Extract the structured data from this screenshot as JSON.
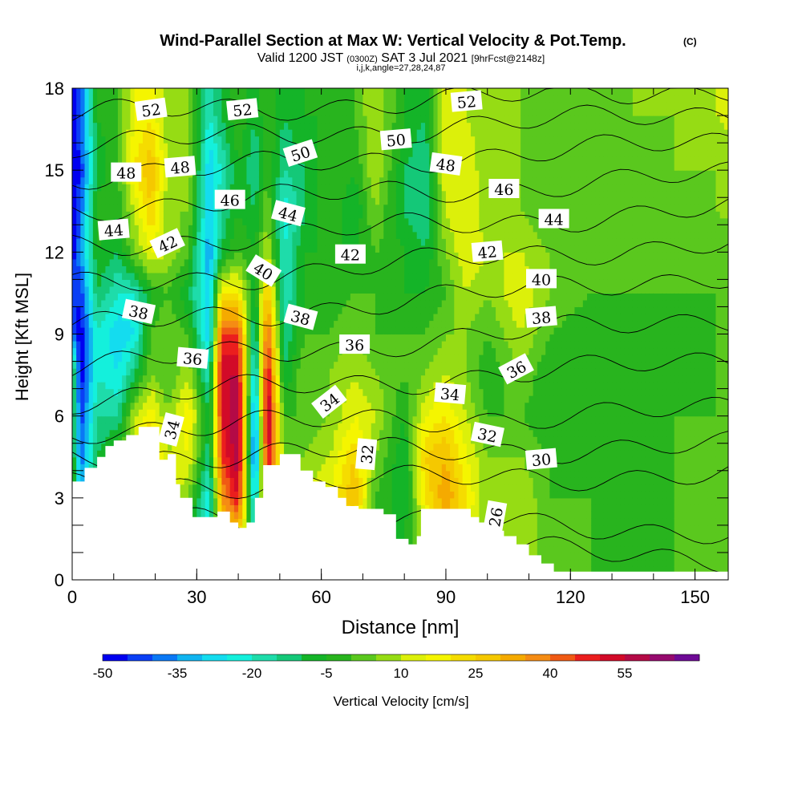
{
  "chart_data": {
    "type": "heatmap",
    "title": "Wind-Parallel Section at Max W: Vertical Velocity & Pot.Temp.",
    "title_mark": "(C)",
    "subtitle": {
      "valid": "Valid 1200 JST",
      "utc": "(0300Z)",
      "date": "SAT 3 Jul 2021",
      "fcst": "[9hrFcst@2148z]"
    },
    "subtitle2": "i,j,k,angle=27,28,24,87",
    "xlabel": "Distance [nm]",
    "ylabel": "Height [Kft MSL]",
    "xlim": [
      0,
      158
    ],
    "ylim": [
      0,
      18
    ],
    "x_ticks": [
      "0",
      "30",
      "60",
      "90",
      "120",
      "150"
    ],
    "x_tick_values": [
      0,
      30,
      60,
      90,
      120,
      150
    ],
    "y_ticks": [
      "0",
      "3",
      "6",
      "9",
      "12",
      "15",
      "18"
    ],
    "y_tick_values": [
      0,
      3,
      6,
      9,
      12,
      15,
      18
    ],
    "colorbar": {
      "label": "Vertical Velocity [cm/s]",
      "tick_labels": [
        "-50",
        "-35",
        "-20",
        "-5",
        "10",
        "25",
        "40",
        "55"
      ],
      "tick_values": [
        -50,
        -35,
        -20,
        -5,
        10,
        25,
        40,
        55
      ],
      "levels": [
        -50,
        -45,
        -40,
        -35,
        -30,
        -25,
        -20,
        -15,
        -10,
        -5,
        0,
        5,
        10,
        15,
        20,
        25,
        30,
        35,
        40,
        45,
        50,
        55,
        60,
        65
      ],
      "colors": [
        "#0000f0",
        "#0a3ff5",
        "#0a78f5",
        "#10b4f0",
        "#14dcef",
        "#14f0dc",
        "#1edcaa",
        "#14c878",
        "#14b428",
        "#28b41e",
        "#5ac81e",
        "#96dc14",
        "#dcf00a",
        "#f5f500",
        "#f5dc00",
        "#f5c800",
        "#f5aa00",
        "#f58c14",
        "#f05a14",
        "#eb1e1e",
        "#d20a28",
        "#b40a46",
        "#960a6e",
        "#6e0a96"
      ]
    },
    "vertical_velocity_cells": {
      "x_start": 0,
      "x_step": 1,
      "y_start": 0,
      "y_step": 0.25,
      "columns": [
        {
          "x": 0,
          "w": [
            0,
            0,
            0,
            0,
            0,
            -40,
            -40,
            -50,
            -50,
            -50,
            -50
          ]
        },
        {
          "x": 2,
          "w": [
            -10,
            -30,
            -40,
            -45,
            -50,
            -50,
            -45,
            -35,
            -40,
            -45,
            -40
          ]
        },
        {
          "x": 6,
          "w": [
            0,
            -5,
            -10,
            -15,
            -20,
            -20,
            -10,
            -5,
            0,
            -10,
            -5
          ]
        },
        {
          "x": 11,
          "w": [
            0,
            5,
            0,
            -15,
            -25,
            -30,
            -20,
            -10,
            -5,
            0,
            0
          ]
        },
        {
          "x": 15,
          "w": [
            5,
            10,
            15,
            10,
            -10,
            -25,
            -20,
            5,
            10,
            20,
            15
          ]
        },
        {
          "x": 19,
          "w": [
            10,
            20,
            25,
            20,
            5,
            0,
            -5,
            15,
            25,
            30,
            20
          ]
        },
        {
          "x": 23,
          "w": [
            0,
            15,
            10,
            5,
            0,
            5,
            0,
            10,
            5,
            10,
            5
          ]
        },
        {
          "x": 28,
          "w": [
            -5,
            5,
            15,
            20,
            10,
            0,
            -10,
            0,
            5,
            10,
            5
          ]
        },
        {
          "x": 33,
          "w": [
            -20,
            -25,
            -15,
            -10,
            -20,
            -30,
            -30,
            -35,
            -30,
            -30,
            -20
          ]
        },
        {
          "x": 36,
          "w": [
            15,
            35,
            45,
            50,
            55,
            45,
            20,
            -10,
            -15,
            -20,
            -10
          ]
        },
        {
          "x": 40,
          "w": [
            25,
            50,
            60,
            60,
            55,
            45,
            20,
            0,
            -5,
            -5,
            0
          ]
        },
        {
          "x": 44,
          "w": [
            -20,
            -30,
            -45,
            -40,
            -30,
            -20,
            -10,
            -5,
            -10,
            -15,
            -10
          ]
        },
        {
          "x": 47,
          "w": [
            20,
            40,
            55,
            60,
            55,
            45,
            30,
            10,
            5,
            0,
            0
          ]
        },
        {
          "x": 51,
          "w": [
            5,
            10,
            5,
            0,
            -10,
            -15,
            -20,
            -20,
            -25,
            -15,
            -10
          ]
        },
        {
          "x": 56,
          "w": [
            5,
            10,
            5,
            0,
            5,
            0,
            -5,
            -5,
            -10,
            -10,
            -5
          ]
        },
        {
          "x": 62,
          "w": [
            10,
            15,
            10,
            5,
            5,
            0,
            -5,
            -5,
            0,
            0,
            -5
          ]
        },
        {
          "x": 68,
          "w": [
            20,
            30,
            25,
            15,
            10,
            5,
            0,
            -5,
            -10,
            -5,
            0
          ]
        },
        {
          "x": 73,
          "w": [
            -5,
            0,
            5,
            10,
            5,
            0,
            0,
            0,
            5,
            10,
            10
          ]
        },
        {
          "x": 80,
          "w": [
            -5,
            -10,
            -10,
            -5,
            0,
            0,
            -5,
            -5,
            -10,
            -10,
            -5
          ]
        },
        {
          "x": 85,
          "w": [
            10,
            20,
            25,
            15,
            5,
            0,
            -5,
            -10,
            -15,
            -15,
            -10
          ]
        },
        {
          "x": 90,
          "w": [
            25,
            35,
            30,
            20,
            10,
            5,
            0,
            5,
            10,
            15,
            15
          ]
        },
        {
          "x": 95,
          "w": [
            15,
            20,
            15,
            10,
            5,
            5,
            10,
            15,
            15,
            15,
            10
          ]
        },
        {
          "x": 100,
          "w": [
            5,
            5,
            5,
            0,
            -5,
            0,
            5,
            10,
            5,
            5,
            5
          ]
        },
        {
          "x": 108,
          "w": [
            10,
            10,
            5,
            0,
            5,
            10,
            15,
            10,
            5,
            5,
            5
          ]
        },
        {
          "x": 115,
          "w": [
            0,
            0,
            0,
            -5,
            -5,
            0,
            5,
            5,
            0,
            0,
            0
          ]
        },
        {
          "x": 125,
          "w": [
            0,
            0,
            -5,
            -5,
            -5,
            -5,
            0,
            0,
            0,
            0,
            0
          ]
        },
        {
          "x": 135,
          "w": [
            -5,
            -5,
            -5,
            -5,
            0,
            0,
            0,
            0,
            0,
            0,
            5
          ]
        },
        {
          "x": 145,
          "w": [
            0,
            0,
            0,
            0,
            -5,
            -5,
            0,
            0,
            0,
            5,
            5
          ]
        },
        {
          "x": 155,
          "w": [
            0,
            0,
            0,
            0,
            0,
            0,
            0,
            0,
            5,
            5,
            10
          ]
        }
      ],
      "levels_kft": [
        1.5,
        3,
        4.5,
        6,
        7.5,
        9,
        10.5,
        12,
        13.5,
        15,
        17
      ]
    },
    "terrain": [
      [
        0,
        3.6
      ],
      [
        3,
        4.1
      ],
      [
        6,
        4.5
      ],
      [
        8,
        4.9
      ],
      [
        10,
        5.1
      ],
      [
        13,
        5.3
      ],
      [
        16,
        5.6
      ],
      [
        20,
        5.6
      ],
      [
        21,
        4.4
      ],
      [
        23,
        4.6
      ],
      [
        25,
        3.5
      ],
      [
        26,
        3.0
      ],
      [
        29,
        2.3
      ],
      [
        33,
        2.3
      ],
      [
        35,
        2.5
      ],
      [
        38,
        2.1
      ],
      [
        40,
        1.9
      ],
      [
        42,
        2.1
      ],
      [
        44,
        3.0
      ],
      [
        46,
        4.2
      ],
      [
        50,
        4.6
      ],
      [
        53,
        4.6
      ],
      [
        55,
        4.0
      ],
      [
        58,
        3.6
      ],
      [
        61,
        3.4
      ],
      [
        64,
        3.0
      ],
      [
        66,
        2.7
      ],
      [
        69,
        2.6
      ],
      [
        72,
        2.6
      ],
      [
        75,
        2.4
      ],
      [
        78,
        1.5
      ],
      [
        81,
        1.3
      ],
      [
        83,
        1.6
      ],
      [
        84,
        2.6
      ],
      [
        88,
        2.6
      ],
      [
        94,
        2.6
      ],
      [
        96,
        2.3
      ],
      [
        98,
        2.1
      ],
      [
        101,
        1.8
      ],
      [
        104,
        1.6
      ],
      [
        107,
        1.3
      ],
      [
        110,
        0.9
      ],
      [
        113,
        0.6
      ],
      [
        116,
        0.3
      ],
      [
        158,
        0.3
      ]
    ],
    "theta_contours": [
      {
        "level": 26,
        "y_left": 1.7,
        "y_right": 0.8
      },
      {
        "level": 28,
        "y_left": 2.4,
        "y_right": 1.8
      },
      {
        "level": 30,
        "y_left": 3.4,
        "y_right": 3.9
      },
      {
        "level": 32,
        "y_left": 4.5,
        "y_right": 4.9
      },
      {
        "level": 34,
        "y_left": 5.5,
        "y_right": 6.2
      },
      {
        "level": 36,
        "y_left": 6.6,
        "y_right": 8.0
      },
      {
        "level": 38,
        "y_left": 7.8,
        "y_right": 9.6
      },
      {
        "level": 40,
        "y_left": 9.2,
        "y_right": 11.2
      },
      {
        "level": 42,
        "y_left": 10.7,
        "y_right": 12.4
      },
      {
        "level": 44,
        "y_left": 12.2,
        "y_right": 13.6
      },
      {
        "level": 46,
        "y_left": 13.6,
        "y_right": 14.8
      },
      {
        "level": 48,
        "y_left": 14.8,
        "y_right": 16.0
      },
      {
        "level": 50,
        "y_left": 15.9,
        "y_right": 17.1
      },
      {
        "level": 52,
        "y_left": 17.0,
        "y_right": 18.0
      }
    ],
    "contour_labels": [
      {
        "text": "52",
        "x": 19,
        "y": 17.2,
        "rot": -8
      },
      {
        "text": "52",
        "x": 41,
        "y": 17.2,
        "rot": -6
      },
      {
        "text": "52",
        "x": 95,
        "y": 17.5,
        "rot": -5
      },
      {
        "text": "50",
        "x": 55,
        "y": 15.6,
        "rot": -18
      },
      {
        "text": "50",
        "x": 78,
        "y": 16.1,
        "rot": -5
      },
      {
        "text": "48",
        "x": 13,
        "y": 14.9,
        "rot": 0
      },
      {
        "text": "48",
        "x": 26,
        "y": 15.1,
        "rot": -5
      },
      {
        "text": "48",
        "x": 90,
        "y": 15.2,
        "rot": 8
      },
      {
        "text": "46",
        "x": 38,
        "y": 13.9,
        "rot": 0
      },
      {
        "text": "46",
        "x": 104,
        "y": 14.3,
        "rot": 0
      },
      {
        "text": "44",
        "x": 10,
        "y": 12.8,
        "rot": -5
      },
      {
        "text": "44",
        "x": 52,
        "y": 13.4,
        "rot": 15
      },
      {
        "text": "44",
        "x": 116,
        "y": 13.2,
        "rot": 0
      },
      {
        "text": "42",
        "x": 23,
        "y": 12.3,
        "rot": -25
      },
      {
        "text": "42",
        "x": 67,
        "y": 11.9,
        "rot": 0
      },
      {
        "text": "42",
        "x": 100,
        "y": 12.0,
        "rot": -5
      },
      {
        "text": "40",
        "x": 46,
        "y": 11.3,
        "rot": 32
      },
      {
        "text": "40",
        "x": 113,
        "y": 11.0,
        "rot": 0
      },
      {
        "text": "38",
        "x": 16,
        "y": 9.8,
        "rot": 12
      },
      {
        "text": "38",
        "x": 55,
        "y": 9.6,
        "rot": 15
      },
      {
        "text": "38",
        "x": 113,
        "y": 9.6,
        "rot": -5
      },
      {
        "text": "36",
        "x": 29,
        "y": 8.1,
        "rot": 5
      },
      {
        "text": "36",
        "x": 68,
        "y": 8.6,
        "rot": 0
      },
      {
        "text": "36",
        "x": 107,
        "y": 7.7,
        "rot": -28
      },
      {
        "text": "34",
        "x": 24,
        "y": 5.5,
        "rot": -75
      },
      {
        "text": "34",
        "x": 62,
        "y": 6.5,
        "rot": -38
      },
      {
        "text": "34",
        "x": 91,
        "y": 6.8,
        "rot": 5
      },
      {
        "text": "32",
        "x": 71,
        "y": 4.6,
        "rot": -85
      },
      {
        "text": "32",
        "x": 100,
        "y": 5.3,
        "rot": 12
      },
      {
        "text": "30",
        "x": 113,
        "y": 4.4,
        "rot": -5
      },
      {
        "text": "26",
        "x": 102,
        "y": 2.3,
        "rot": -80
      }
    ]
  }
}
